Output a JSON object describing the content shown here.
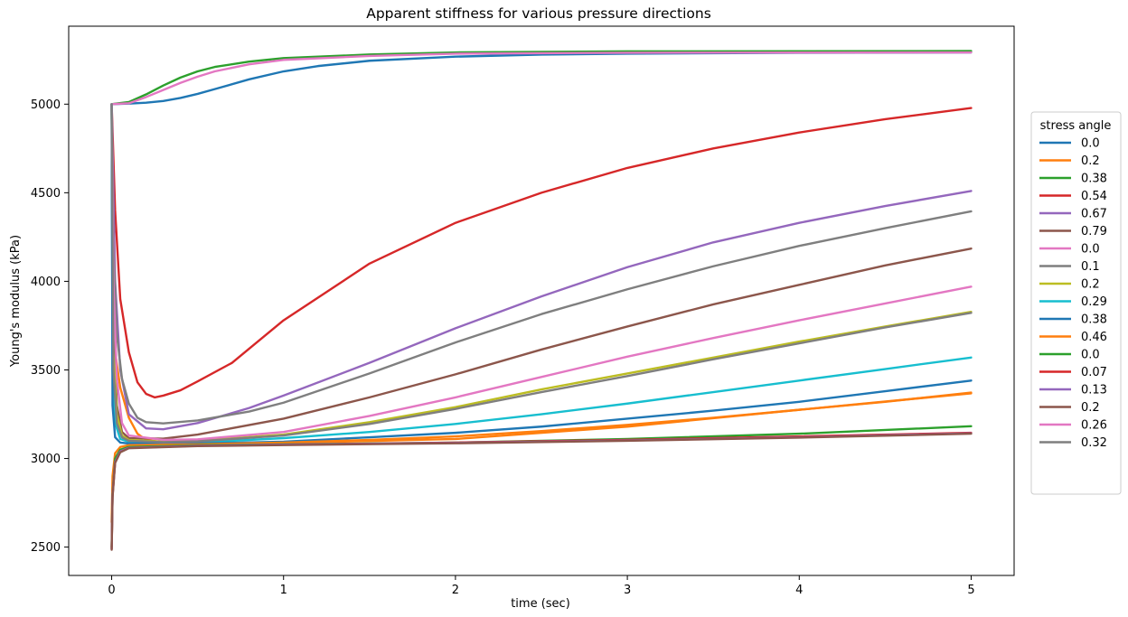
{
  "chart_data": {
    "type": "line",
    "title": "Apparent stiffness for various pressure directions",
    "xlabel": "time (sec)",
    "ylabel": "Young's modulus (kPa)",
    "xlim": [
      -0.25,
      5.25
    ],
    "ylim": [
      2340,
      5440
    ],
    "xticks": [
      0,
      1,
      2,
      3,
      4,
      5
    ],
    "yticks": [
      2500,
      3000,
      3500,
      4000,
      4500,
      5000
    ],
    "grid": false,
    "legend": {
      "title": "stress angle",
      "placement": "right"
    },
    "series": [
      {
        "name": "0.0",
        "color": "#1f77b4",
        "points": [
          [
            0,
            5000
          ],
          [
            0.1,
            5003
          ],
          [
            0.2,
            5008
          ],
          [
            0.3,
            5018
          ],
          [
            0.4,
            5035
          ],
          [
            0.5,
            5058
          ],
          [
            0.6,
            5085
          ],
          [
            0.8,
            5140
          ],
          [
            1.0,
            5185
          ],
          [
            1.2,
            5215
          ],
          [
            1.5,
            5245
          ],
          [
            2.0,
            5268
          ],
          [
            2.5,
            5280
          ],
          [
            3.0,
            5285
          ],
          [
            4.0,
            5290
          ],
          [
            5.0,
            5292
          ]
        ]
      },
      {
        "name": "0.2",
        "color": "#ff7f0e",
        "points": [
          [
            0,
            5000
          ],
          [
            0.005,
            4000
          ],
          [
            0.02,
            3600
          ],
          [
            0.05,
            3400
          ],
          [
            0.1,
            3230
          ],
          [
            0.15,
            3140
          ],
          [
            0.2,
            3105
          ],
          [
            0.3,
            3092
          ],
          [
            0.5,
            3085
          ],
          [
            1.0,
            3088
          ],
          [
            2.0,
            3110
          ],
          [
            3.0,
            3180
          ],
          [
            4.0,
            3275
          ],
          [
            5.0,
            3368
          ]
        ]
      },
      {
        "name": "0.38",
        "color": "#2ca02c",
        "points": [
          [
            0,
            5000
          ],
          [
            0.1,
            5012
          ],
          [
            0.2,
            5055
          ],
          [
            0.3,
            5105
          ],
          [
            0.4,
            5150
          ],
          [
            0.5,
            5185
          ],
          [
            0.6,
            5210
          ],
          [
            0.8,
            5240
          ],
          [
            1.0,
            5260
          ],
          [
            1.5,
            5280
          ],
          [
            2.0,
            5292
          ],
          [
            3.0,
            5298
          ],
          [
            5.0,
            5300
          ]
        ]
      },
      {
        "name": "0.54",
        "color": "#d62728",
        "points": [
          [
            0,
            5000
          ],
          [
            0.02,
            4400
          ],
          [
            0.05,
            3900
          ],
          [
            0.1,
            3600
          ],
          [
            0.15,
            3430
          ],
          [
            0.2,
            3365
          ],
          [
            0.25,
            3345
          ],
          [
            0.3,
            3355
          ],
          [
            0.4,
            3385
          ],
          [
            0.5,
            3435
          ],
          [
            0.7,
            3540
          ],
          [
            1.0,
            3780
          ],
          [
            1.5,
            4100
          ],
          [
            2.0,
            4330
          ],
          [
            2.5,
            4500
          ],
          [
            3.0,
            4640
          ],
          [
            3.5,
            4750
          ],
          [
            4.0,
            4840
          ],
          [
            4.5,
            4915
          ],
          [
            5.0,
            4978
          ]
        ]
      },
      {
        "name": "0.67",
        "color": "#9467bd",
        "points": [
          [
            0,
            5000
          ],
          [
            0.02,
            4000
          ],
          [
            0.05,
            3500
          ],
          [
            0.1,
            3250
          ],
          [
            0.2,
            3170
          ],
          [
            0.3,
            3165
          ],
          [
            0.5,
            3200
          ],
          [
            0.8,
            3285
          ],
          [
            1.0,
            3355
          ],
          [
            1.5,
            3540
          ],
          [
            2.0,
            3735
          ],
          [
            2.5,
            3915
          ],
          [
            3.0,
            4080
          ],
          [
            3.5,
            4220
          ],
          [
            4.0,
            4330
          ],
          [
            4.5,
            4425
          ],
          [
            5.0,
            4510
          ]
        ]
      },
      {
        "name": "0.79",
        "color": "#8c564b",
        "points": [
          [
            0,
            5000
          ],
          [
            0.01,
            3800
          ],
          [
            0.03,
            3300
          ],
          [
            0.06,
            3150
          ],
          [
            0.1,
            3115
          ],
          [
            0.3,
            3112
          ],
          [
            0.5,
            3135
          ],
          [
            1.0,
            3225
          ],
          [
            1.5,
            3345
          ],
          [
            2.0,
            3475
          ],
          [
            2.5,
            3615
          ],
          [
            3.0,
            3745
          ],
          [
            3.5,
            3870
          ],
          [
            4.0,
            3980
          ],
          [
            4.5,
            4090
          ],
          [
            5.0,
            4185
          ]
        ]
      },
      {
        "name": "0.0",
        "color": "#e377c2",
        "points": [
          [
            0,
            5000
          ],
          [
            0.1,
            5005
          ],
          [
            0.2,
            5040
          ],
          [
            0.3,
            5080
          ],
          [
            0.4,
            5120
          ],
          [
            0.5,
            5155
          ],
          [
            0.6,
            5185
          ],
          [
            0.8,
            5225
          ],
          [
            1.0,
            5250
          ],
          [
            1.5,
            5272
          ],
          [
            2.0,
            5285
          ],
          [
            3.0,
            5290
          ],
          [
            5.0,
            5292
          ]
        ]
      },
      {
        "name": "0.1",
        "color": "#7f7f7f",
        "points": [
          [
            0,
            5000
          ],
          [
            0.01,
            4200
          ],
          [
            0.03,
            3700
          ],
          [
            0.06,
            3450
          ],
          [
            0.1,
            3310
          ],
          [
            0.15,
            3230
          ],
          [
            0.2,
            3205
          ],
          [
            0.3,
            3198
          ],
          [
            0.5,
            3215
          ],
          [
            0.8,
            3265
          ],
          [
            1.0,
            3315
          ],
          [
            1.5,
            3480
          ],
          [
            2.0,
            3655
          ],
          [
            2.5,
            3815
          ],
          [
            3.0,
            3955
          ],
          [
            3.5,
            4085
          ],
          [
            4.0,
            4200
          ],
          [
            4.5,
            4300
          ],
          [
            5.0,
            4395
          ]
        ]
      },
      {
        "name": "0.2",
        "color": "#bcbd22",
        "points": [
          [
            0,
            5000
          ],
          [
            0.01,
            3600
          ],
          [
            0.03,
            3250
          ],
          [
            0.06,
            3130
          ],
          [
            0.1,
            3105
          ],
          [
            0.3,
            3095
          ],
          [
            0.5,
            3100
          ],
          [
            1.0,
            3135
          ],
          [
            1.5,
            3205
          ],
          [
            2.0,
            3290
          ],
          [
            2.5,
            3390
          ],
          [
            3.0,
            3480
          ],
          [
            3.5,
            3570
          ],
          [
            4.0,
            3660
          ],
          [
            4.5,
            3745
          ],
          [
            5.0,
            3828
          ]
        ]
      },
      {
        "name": "0.29",
        "color": "#17becf",
        "points": [
          [
            0,
            5000
          ],
          [
            0.005,
            3500
          ],
          [
            0.02,
            3200
          ],
          [
            0.05,
            3110
          ],
          [
            0.1,
            3095
          ],
          [
            0.3,
            3088
          ],
          [
            0.5,
            3090
          ],
          [
            1.0,
            3115
          ],
          [
            1.5,
            3150
          ],
          [
            2.0,
            3195
          ],
          [
            2.5,
            3250
          ],
          [
            3.0,
            3310
          ],
          [
            3.5,
            3375
          ],
          [
            4.0,
            3440
          ],
          [
            4.5,
            3505
          ],
          [
            5.0,
            3570
          ]
        ]
      },
      {
        "name": "0.38",
        "color": "#1f77b4",
        "points": [
          [
            0,
            5000
          ],
          [
            0.005,
            3300
          ],
          [
            0.02,
            3120
          ],
          [
            0.05,
            3090
          ],
          [
            0.1,
            3085
          ],
          [
            0.5,
            3085
          ],
          [
            1.0,
            3095
          ],
          [
            1.5,
            3120
          ],
          [
            2.0,
            3145
          ],
          [
            2.5,
            3180
          ],
          [
            3.0,
            3225
          ],
          [
            3.5,
            3270
          ],
          [
            4.0,
            3320
          ],
          [
            4.5,
            3380
          ],
          [
            5.0,
            3440
          ]
        ]
      },
      {
        "name": "0.46",
        "color": "#ff7f0e",
        "points": [
          [
            0,
            2640
          ],
          [
            0.005,
            2900
          ],
          [
            0.02,
            3030
          ],
          [
            0.05,
            3065
          ],
          [
            0.1,
            3075
          ],
          [
            0.5,
            3080
          ],
          [
            1.0,
            3090
          ],
          [
            1.5,
            3105
          ],
          [
            2.0,
            3125
          ],
          [
            2.5,
            3155
          ],
          [
            3.0,
            3190
          ],
          [
            3.5,
            3230
          ],
          [
            4.0,
            3275
          ],
          [
            4.5,
            3320
          ],
          [
            5.0,
            3372
          ]
        ]
      },
      {
        "name": "0.0",
        "color": "#2ca02c",
        "points": [
          [
            0,
            2500
          ],
          [
            0.005,
            2800
          ],
          [
            0.02,
            3000
          ],
          [
            0.05,
            3050
          ],
          [
            0.1,
            3065
          ],
          [
            0.5,
            3075
          ],
          [
            1.0,
            3080
          ],
          [
            2.0,
            3090
          ],
          [
            3.0,
            3110
          ],
          [
            4.0,
            3140
          ],
          [
            5.0,
            3182
          ]
        ]
      },
      {
        "name": "0.07",
        "color": "#d62728",
        "points": [
          [
            0,
            2490
          ],
          [
            0.005,
            2790
          ],
          [
            0.02,
            2980
          ],
          [
            0.05,
            3040
          ],
          [
            0.1,
            3060
          ],
          [
            0.5,
            3072
          ],
          [
            1.0,
            3078
          ],
          [
            2.0,
            3090
          ],
          [
            3.0,
            3105
          ],
          [
            4.0,
            3125
          ],
          [
            5.0,
            3145
          ]
        ]
      },
      {
        "name": "0.13",
        "color": "#9467bd",
        "points": [
          [
            0,
            2490
          ],
          [
            0.005,
            2790
          ],
          [
            0.02,
            2980
          ],
          [
            0.05,
            3040
          ],
          [
            0.1,
            3060
          ],
          [
            0.5,
            3072
          ],
          [
            1.0,
            3078
          ],
          [
            2.0,
            3088
          ],
          [
            3.0,
            3102
          ],
          [
            4.0,
            3120
          ],
          [
            5.0,
            3142
          ]
        ]
      },
      {
        "name": "0.2",
        "color": "#8c564b",
        "points": [
          [
            0,
            2485
          ],
          [
            0.005,
            2780
          ],
          [
            0.02,
            2975
          ],
          [
            0.05,
            3035
          ],
          [
            0.1,
            3058
          ],
          [
            0.5,
            3070
          ],
          [
            1.0,
            3076
          ],
          [
            2.0,
            3086
          ],
          [
            3.0,
            3100
          ],
          [
            4.0,
            3118
          ],
          [
            5.0,
            3140
          ]
        ]
      },
      {
        "name": "0.26",
        "color": "#e377c2",
        "points": [
          [
            0,
            5000
          ],
          [
            0.01,
            4000
          ],
          [
            0.03,
            3450
          ],
          [
            0.06,
            3200
          ],
          [
            0.1,
            3130
          ],
          [
            0.3,
            3105
          ],
          [
            0.5,
            3108
          ],
          [
            1.0,
            3150
          ],
          [
            1.5,
            3240
          ],
          [
            2.0,
            3345
          ],
          [
            2.5,
            3460
          ],
          [
            3.0,
            3575
          ],
          [
            3.5,
            3680
          ],
          [
            4.0,
            3780
          ],
          [
            4.5,
            3875
          ],
          [
            5.0,
            3970
          ]
        ]
      },
      {
        "name": "0.32",
        "color": "#7f7f7f",
        "points": [
          [
            0,
            5000
          ],
          [
            0.01,
            3500
          ],
          [
            0.03,
            3200
          ],
          [
            0.06,
            3120
          ],
          [
            0.1,
            3100
          ],
          [
            0.3,
            3092
          ],
          [
            0.5,
            3097
          ],
          [
            1.0,
            3130
          ],
          [
            1.5,
            3195
          ],
          [
            2.0,
            3280
          ],
          [
            2.5,
            3375
          ],
          [
            3.0,
            3465
          ],
          [
            3.5,
            3560
          ],
          [
            4.0,
            3650
          ],
          [
            4.5,
            3740
          ],
          [
            5.0,
            3822
          ]
        ]
      }
    ]
  }
}
